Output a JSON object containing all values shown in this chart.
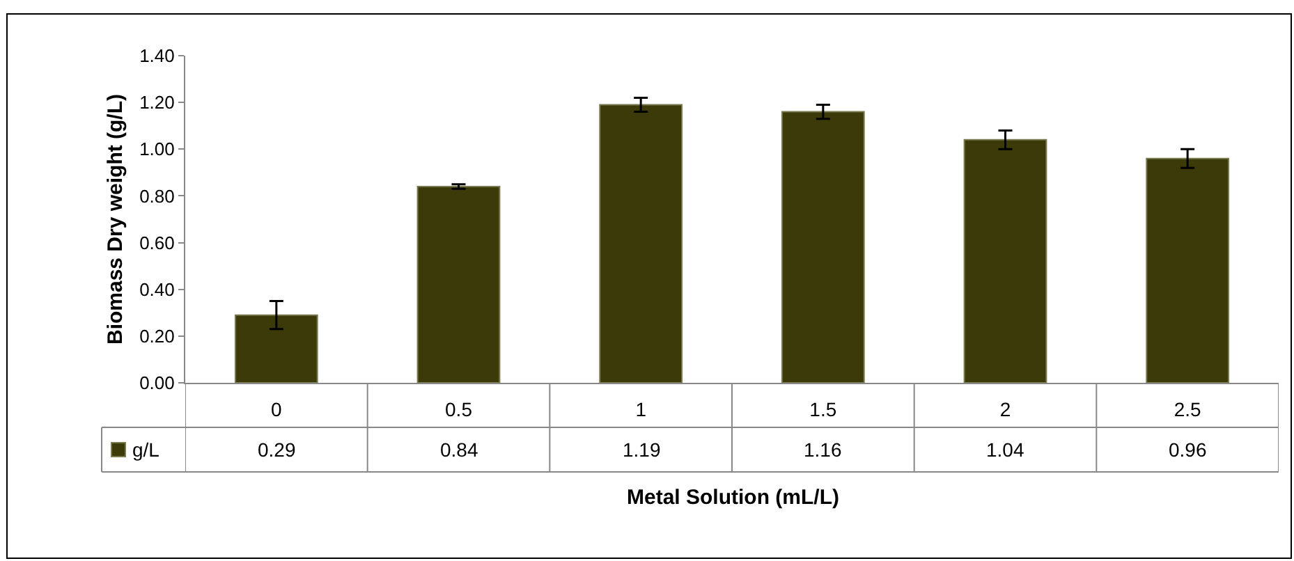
{
  "chart_data": {
    "type": "bar",
    "xlabel": "Metal Solution (mL/L)",
    "ylabel": "Biomass Dry weight (g/L)",
    "categories": [
      "0",
      "0.5",
      "1",
      "1.5",
      "2",
      "2.5"
    ],
    "series": [
      {
        "name": "g/L",
        "color": "#3b3a08",
        "values": [
          0.29,
          0.84,
          1.19,
          1.16,
          1.04,
          0.96
        ],
        "errors": [
          0.06,
          0.01,
          0.03,
          0.03,
          0.04,
          0.04
        ]
      }
    ],
    "ylim": [
      0,
      1.4
    ],
    "yticks": [
      {
        "value": 0,
        "label": "0.00"
      },
      {
        "value": 0.2,
        "label": "0.20"
      },
      {
        "value": 0.4,
        "label": "0.40"
      },
      {
        "value": 0.6,
        "label": "0.60"
      },
      {
        "value": 0.8,
        "label": "0.80"
      },
      {
        "value": 1.0,
        "label": "1.00"
      },
      {
        "value": 1.2,
        "label": "1.20"
      },
      {
        "value": 1.4,
        "label": "1.40"
      }
    ],
    "data_labels": true,
    "legend": "bottom left"
  }
}
